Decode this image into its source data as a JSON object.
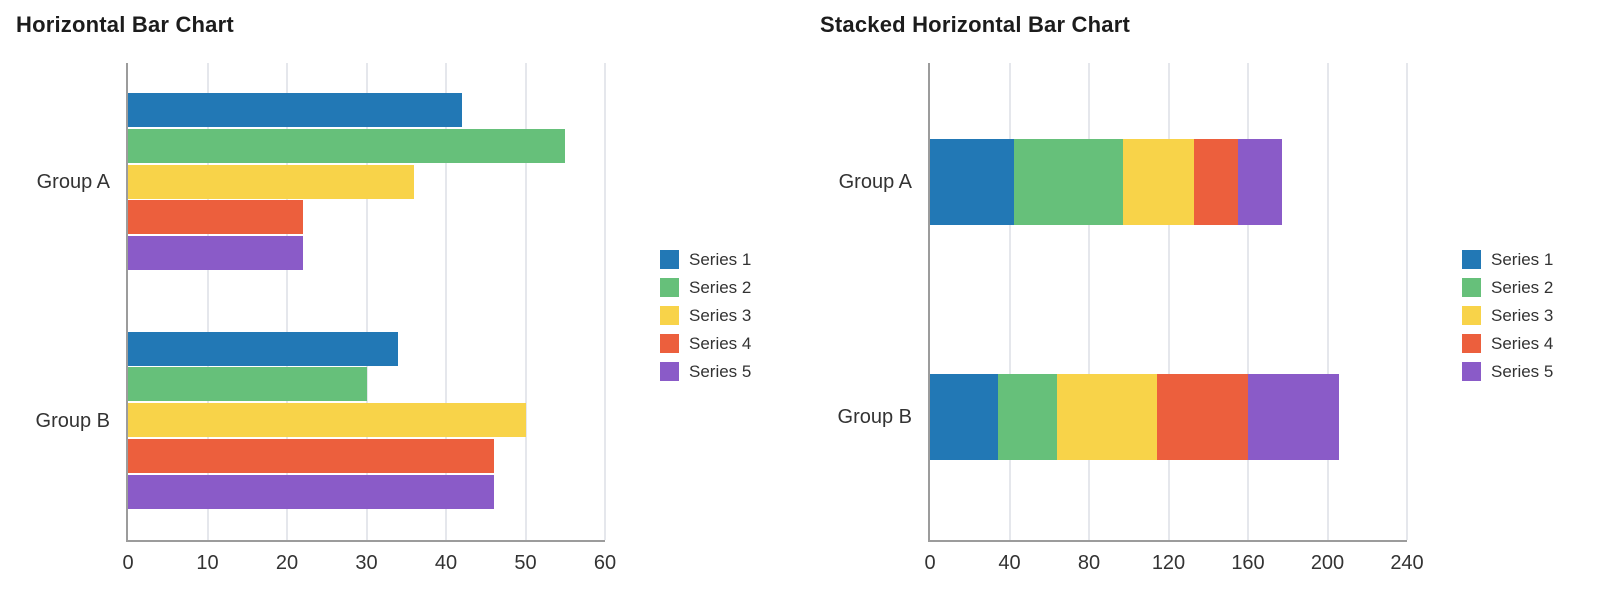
{
  "page": {
    "background": "#ffffff",
    "grid_color": "#e5e7ec",
    "axis_color": "#9c9c9c",
    "label_color": "#333333",
    "title_color": "#1c1c1c"
  },
  "chart_data": [
    {
      "type": "bar",
      "orientation": "horizontal",
      "title": "Horizontal Bar Chart",
      "categories": [
        "Group A",
        "Group B"
      ],
      "series": [
        {
          "name": "Series 1",
          "color": "#2278b5",
          "values": [
            42,
            34
          ]
        },
        {
          "name": "Series 2",
          "color": "#66c07a",
          "values": [
            55,
            30
          ]
        },
        {
          "name": "Series 3",
          "color": "#f8d349",
          "values": [
            36,
            50
          ]
        },
        {
          "name": "Series 4",
          "color": "#ec5f3d",
          "values": [
            22,
            46
          ]
        },
        {
          "name": "Series 5",
          "color": "#8a5bc8",
          "values": [
            22,
            46
          ]
        }
      ],
      "x_axis": {
        "min": 0,
        "max": 60,
        "tick_step": 10,
        "tick_labels": [
          "0",
          "10",
          "20",
          "30",
          "40",
          "50",
          "60"
        ]
      },
      "grid": true,
      "legend_position": "right",
      "legend_items": [
        "Series 1",
        "Series 2",
        "Series 3",
        "Series 4",
        "Series 5"
      ]
    },
    {
      "type": "stacked_bar",
      "orientation": "horizontal",
      "title": "Stacked Horizontal Bar Chart",
      "categories": [
        "Group A",
        "Group B"
      ],
      "series": [
        {
          "name": "Series 1",
          "color": "#2278b5",
          "values": [
            42,
            34
          ]
        },
        {
          "name": "Series 2",
          "color": "#66c07a",
          "values": [
            55,
            30
          ]
        },
        {
          "name": "Series 3",
          "color": "#f8d349",
          "values": [
            36,
            50
          ]
        },
        {
          "name": "Series 4",
          "color": "#ec5f3d",
          "values": [
            22,
            46
          ]
        },
        {
          "name": "Series 5",
          "color": "#8a5bc8",
          "values": [
            22,
            46
          ]
        }
      ],
      "category_totals": [
        177,
        206
      ],
      "x_axis": {
        "min": 0,
        "max": 240,
        "tick_step": 40,
        "tick_labels": [
          "0",
          "40",
          "80",
          "120",
          "160",
          "200",
          "240"
        ]
      },
      "grid": true,
      "legend_position": "right",
      "legend_items": [
        "Series 1",
        "Series 2",
        "Series 3",
        "Series 4",
        "Series 5"
      ]
    }
  ]
}
